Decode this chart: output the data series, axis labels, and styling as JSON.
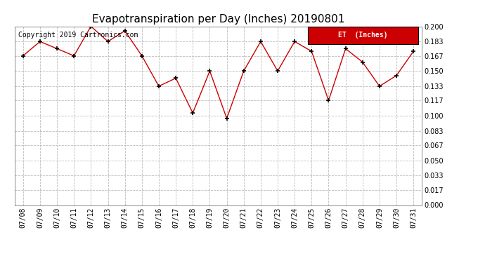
{
  "title": "Evapotranspiration per Day (Inches) 20190801",
  "copyright": "Copyright 2019 Cartronics.com",
  "legend_label": "ET  (Inches)",
  "dates": [
    "07/08",
    "07/09",
    "07/10",
    "07/11",
    "07/12",
    "07/13",
    "07/14",
    "07/15",
    "07/16",
    "07/17",
    "07/18",
    "07/19",
    "07/20",
    "07/21",
    "07/22",
    "07/23",
    "07/24",
    "07/25",
    "07/26",
    "07/27",
    "07/28",
    "07/29",
    "07/30",
    "07/31"
  ],
  "values": [
    0.167,
    0.183,
    0.175,
    0.167,
    0.2,
    0.183,
    0.195,
    0.167,
    0.133,
    0.142,
    0.103,
    0.15,
    0.097,
    0.15,
    0.183,
    0.15,
    0.183,
    0.172,
    0.117,
    0.175,
    0.16,
    0.133,
    0.145,
    0.172
  ],
  "ylim": [
    0.0,
    0.2
  ],
  "yticks": [
    0.0,
    0.017,
    0.033,
    0.05,
    0.067,
    0.083,
    0.1,
    0.117,
    0.133,
    0.15,
    0.167,
    0.183,
    0.2
  ],
  "line_color": "#cc0000",
  "marker_color": "#000000",
  "background_color": "#ffffff",
  "grid_color": "#bbbbbb",
  "title_fontsize": 11,
  "copyright_fontsize": 7,
  "tick_fontsize": 7,
  "legend_bg_color": "#cc0000",
  "legend_text_color": "#ffffff",
  "fig_width": 6.9,
  "fig_height": 3.75,
  "dpi": 100
}
